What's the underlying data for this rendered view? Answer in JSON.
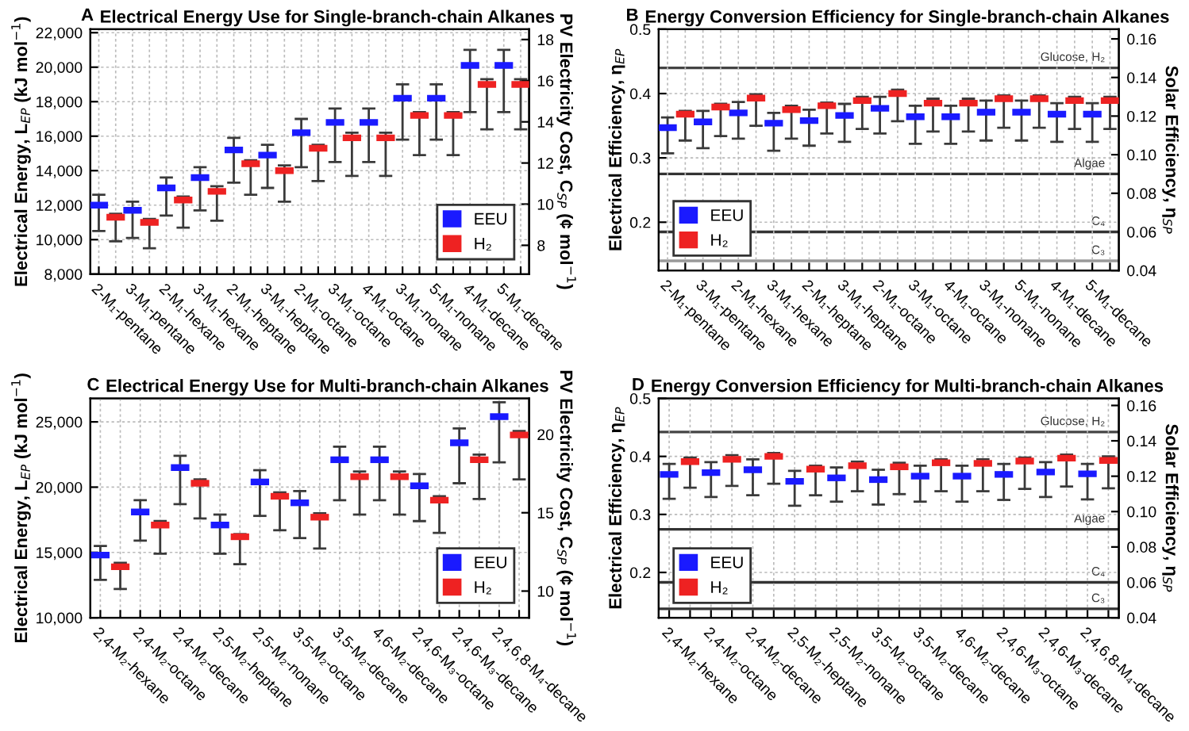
{
  "chart_data": [
    {
      "type": "scatter",
      "title": "Electrical Energy Use for Single-branch-chain Alkanes",
      "annotations": [
        "A"
      ],
      "ylabel": "Electrical Energy, L$_{EP}$ (kJ mol$^{−1}$)",
      "y2label": "PV Electricity Cost, C$_{SP}$ (¢ mol$^{−1}$)",
      "categories": [
        "2-M₁-pentane",
        null,
        "3-M₁-pentane",
        null,
        "2-M₁-hexane",
        null,
        "3-M₁-hexane",
        null,
        "2-M₁-heptane",
        null,
        "3-M₁-heptane",
        null,
        "2-M₁-octane",
        null,
        "3-M₁-octane",
        null,
        "4-M₁-octane",
        null,
        "3-M₁-nonane",
        null,
        "5-M₁-nonane",
        null,
        "4-M₁-decane",
        null,
        "5-M₁-decane",
        null
      ],
      "series": [
        {
          "name": "EEU",
          "color": "#1a1aff",
          "values": [
            12000,
            null,
            11700,
            null,
            13000,
            null,
            13600,
            null,
            15200,
            null,
            14900,
            null,
            16200,
            null,
            16800,
            null,
            16800,
            null,
            18200,
            null,
            18200,
            null,
            20100,
            null,
            20100,
            null
          ],
          "errors": [
            [
              10500,
              12600
            ],
            null,
            [
              10100,
              12200
            ],
            null,
            [
              11400,
              13600
            ],
            null,
            [
              11700,
              14200
            ],
            null,
            [
              13300,
              15900
            ],
            null,
            [
              13000,
              15500
            ],
            null,
            [
              14200,
              17000
            ],
            null,
            [
              14500,
              17600
            ],
            null,
            [
              14500,
              17600
            ],
            null,
            [
              15800,
              19000
            ],
            null,
            [
              15800,
              19000
            ],
            null,
            [
              17400,
              21000
            ],
            null,
            [
              17400,
              21000
            ],
            null
          ]
        },
        {
          "name": "H₂",
          "color": "#ee2222",
          "values": [
            null,
            11300,
            null,
            11000,
            null,
            12300,
            null,
            12800,
            null,
            14400,
            null,
            14000,
            null,
            15300,
            null,
            15900,
            null,
            15900,
            null,
            17200,
            null,
            17200,
            null,
            19000,
            null,
            19000
          ],
          "errors": [
            null,
            [
              9900,
              11500
            ],
            null,
            [
              9500,
              11200
            ],
            null,
            [
              10700,
              12500
            ],
            null,
            [
              11100,
              13100
            ],
            null,
            [
              12600,
              14600
            ],
            null,
            [
              12200,
              14300
            ],
            null,
            [
              13400,
              15500
            ],
            null,
            [
              13700,
              16200
            ],
            null,
            [
              13700,
              16200
            ],
            null,
            [
              14900,
              17400
            ],
            null,
            [
              14900,
              17400
            ],
            null,
            [
              16400,
              19300
            ],
            null,
            [
              16400,
              19300
            ]
          ]
        }
      ],
      "ylim": [
        8000,
        22200
      ],
      "yticks": [
        {
          "value": 8000,
          "label": "8,000"
        },
        {
          "value": 10000,
          "label": "10,000"
        },
        {
          "value": 12000,
          "label": "12,000"
        },
        {
          "value": 14000,
          "label": "14,000"
        },
        {
          "value": 16000,
          "label": "16,000"
        },
        {
          "value": 18000,
          "label": "18,000"
        },
        {
          "value": 20000,
          "label": "20,000"
        },
        {
          "value": 22000,
          "label": "22,000"
        }
      ],
      "y2lim": [
        6.6,
        18.5
      ],
      "y2ticks": [
        8,
        10,
        12,
        14,
        16,
        18
      ],
      "grid": true,
      "legend": "bottom right"
    },
    {
      "type": "scatter",
      "title": "Energy Conversion Efficiency for Single-branch-chain Alkanes",
      "annotations": [
        "B"
      ],
      "ylabel": "Electrical Efficiency, η$_{EP}$",
      "y2label": "Solar Efficiency, η$_{SP}$",
      "categories": [
        "2-M₁-pentane",
        null,
        "3-M₁-pentane",
        null,
        "2-M₁-hexane",
        null,
        "3-M₁-hexane",
        null,
        "2-M₁-heptane",
        null,
        "3-M₁-heptane",
        null,
        "2-M₁-octane",
        null,
        "3-M₁-octane",
        null,
        "4-M₁-octane",
        null,
        "3-M₁-nonane",
        null,
        "5-M₁-nonane",
        null,
        "4-M₁-decane",
        null,
        "5-M₁-decane",
        null
      ],
      "series": [
        {
          "name": "EEU",
          "color": "#1a1aff",
          "values": [
            0.347,
            null,
            0.356,
            null,
            0.37,
            null,
            0.354,
            null,
            0.358,
            null,
            0.366,
            null,
            0.377,
            null,
            0.364,
            null,
            0.364,
            null,
            0.371,
            null,
            0.371,
            null,
            0.368,
            null,
            0.368,
            null
          ],
          "errors": [
            [
              0.307,
              0.363
            ],
            null,
            [
              0.315,
              0.373
            ],
            null,
            [
              0.33,
              0.387
            ],
            null,
            [
              0.311,
              0.37
            ],
            null,
            [
              0.319,
              0.375
            ],
            null,
            [
              0.325,
              0.384
            ],
            null,
            [
              0.338,
              0.395
            ],
            null,
            [
              0.322,
              0.381
            ],
            null,
            [
              0.322,
              0.381
            ],
            null,
            [
              0.327,
              0.389
            ],
            null,
            [
              0.327,
              0.389
            ],
            null,
            [
              0.325,
              0.385
            ],
            null,
            [
              0.325,
              0.385
            ],
            null
          ]
        },
        {
          "name": "H₂",
          "color": "#ee2222",
          "values": [
            null,
            0.368,
            null,
            0.379,
            null,
            0.393,
            null,
            0.375,
            null,
            0.381,
            null,
            0.389,
            null,
            0.4,
            null,
            0.385,
            null,
            0.385,
            null,
            0.392,
            null,
            0.392,
            null,
            0.389,
            null,
            0.389
          ],
          "errors": [
            null,
            [
              0.327,
              0.373
            ],
            null,
            [
              0.334,
              0.384
            ],
            null,
            [
              0.35,
              0.399
            ],
            null,
            [
              0.33,
              0.381
            ],
            null,
            [
              0.338,
              0.386
            ],
            null,
            [
              0.345,
              0.395
            ],
            null,
            [
              0.357,
              0.406
            ],
            null,
            [
              0.341,
              0.392
            ],
            null,
            [
              0.341,
              0.392
            ],
            null,
            [
              0.347,
              0.397
            ],
            null,
            [
              0.347,
              0.397
            ],
            null,
            [
              0.345,
              0.395
            ],
            null,
            [
              0.345,
              0.395
            ]
          ]
        }
      ],
      "ylim": [
        0.125,
        0.5
      ],
      "yticks": [
        0.2,
        0.3,
        0.4,
        0.5
      ],
      "y2lim": [
        0.04,
        0.165
      ],
      "y2ticks": [
        0.04,
        0.06,
        0.08,
        {
          "value": 0.1,
          "label": "0.10"
        },
        0.12,
        0.14,
        0.16
      ],
      "ref_lines": [
        {
          "axis": "y2",
          "value": 0.145,
          "label": "Glucose, H₂",
          "color": "#444444"
        },
        {
          "axis": "y2",
          "value": 0.09,
          "label": "Algae",
          "color": "#333333"
        },
        {
          "axis": "y2",
          "value": 0.06,
          "label": "C₄",
          "color": "#333333"
        },
        {
          "axis": "y2",
          "value": 0.045,
          "label": "C₃",
          "color": "#999999"
        }
      ],
      "grid": true,
      "legend": "bottom left"
    },
    {
      "type": "scatter",
      "title": "Electrical Energy Use for Multi-branch-chain Alkanes",
      "annotations": [
        "C"
      ],
      "ylabel": "Electrical Energy, L$_{EP}$ (kJ mol$^{−1}$)",
      "y2label": "PV Electricity Cost, C$_{SP}$ (¢ mol$^{−1}$)",
      "categories": [
        "2,4-M₂-hexane",
        null,
        "2,4-M₂-octane",
        null,
        "2,4-M₂-decane",
        null,
        "2,5-M₂-heptane",
        null,
        "2,5-M₂-nonane",
        null,
        "3,5-M₂-octane",
        null,
        "3,5-M₂-decane",
        null,
        "4,6-M₂-decane",
        null,
        "2,4,6-M₃-octane",
        null,
        "2,4,6-M₃-decane",
        null,
        "2,4,6,8-M₄-decane",
        null
      ],
      "series": [
        {
          "name": "EEU",
          "color": "#1a1aff",
          "values": [
            14800,
            null,
            18100,
            null,
            21500,
            null,
            17100,
            null,
            20400,
            null,
            18800,
            null,
            22100,
            null,
            22100,
            null,
            20100,
            null,
            23400,
            null,
            25400,
            null
          ],
          "errors": [
            [
              12900,
              15500
            ],
            null,
            [
              15900,
              19000
            ],
            null,
            [
              18700,
              22400
            ],
            null,
            [
              14900,
              17900
            ],
            null,
            [
              17800,
              21300
            ],
            null,
            [
              16100,
              19700
            ],
            null,
            [
              19000,
              23100
            ],
            null,
            [
              19000,
              23100
            ],
            null,
            [
              17400,
              21000
            ],
            null,
            [
              20300,
              24500
            ],
            null,
            [
              21900,
              26500
            ],
            null
          ]
        },
        {
          "name": "H₂",
          "color": "#ee2222",
          "values": [
            null,
            13900,
            null,
            17100,
            null,
            20300,
            null,
            16200,
            null,
            19300,
            null,
            17700,
            null,
            20800,
            null,
            20800,
            null,
            19000,
            null,
            22100,
            null,
            24000
          ],
          "errors": [
            null,
            [
              12200,
              14200
            ],
            null,
            [
              14900,
              17400
            ],
            null,
            [
              17600,
              20600
            ],
            null,
            [
              14100,
              16400
            ],
            null,
            [
              16700,
              19600
            ],
            null,
            [
              15300,
              18000
            ],
            null,
            [
              17900,
              21200
            ],
            null,
            [
              17900,
              21200
            ],
            null,
            [
              16500,
              19300
            ],
            null,
            [
              19100,
              22500
            ],
            null,
            [
              20600,
              24300
            ]
          ]
        }
      ],
      "ylim": [
        10000,
        26800
      ],
      "yticks": [
        {
          "value": 10000,
          "label": "10,000"
        },
        {
          "value": 15000,
          "label": "15,000"
        },
        {
          "value": 20000,
          "label": "20,000"
        },
        {
          "value": 25000,
          "label": "25,000"
        }
      ],
      "y2lim": [
        8.3,
        22.3
      ],
      "y2ticks": [
        10,
        15,
        20
      ],
      "grid": true,
      "legend": "bottom right"
    },
    {
      "type": "scatter",
      "title": "Energy Conversion Efficiency for Multi-branch-chain Alkanes",
      "annotations": [
        "D"
      ],
      "ylabel": "Electrical Efficiency, η$_{EP}$",
      "y2label": "Solar Efficiency, η$_{SP}$",
      "categories": [
        "2,4-M₂-hexane",
        null,
        "2,4-M₂-octane",
        null,
        "2,4-M₂-decane",
        null,
        "2,5-M₂-heptane",
        null,
        "2,5-M₂-nonane",
        null,
        "3,5-M₂-octane",
        null,
        "3,5-M₂-decane",
        null,
        "4,6-M₂-decane",
        null,
        "2,4,6-M₃-octane",
        null,
        "2,4,6-M₃-decane",
        null,
        "2,4,6,8-M₄-decane",
        null
      ],
      "series": [
        {
          "name": "EEU",
          "color": "#1a1aff",
          "values": [
            0.369,
            null,
            0.372,
            null,
            0.377,
            null,
            0.357,
            null,
            0.363,
            null,
            0.36,
            null,
            0.366,
            null,
            0.366,
            null,
            0.369,
            null,
            0.373,
            null,
            0.37,
            null
          ],
          "errors": [
            [
              0.327,
              0.387
            ],
            null,
            [
              0.33,
              0.39
            ],
            null,
            [
              0.333,
              0.395
            ],
            null,
            [
              0.315,
              0.375
            ],
            null,
            [
              0.322,
              0.381
            ],
            null,
            [
              0.317,
              0.377
            ],
            null,
            [
              0.322,
              0.384
            ],
            null,
            [
              0.322,
              0.384
            ],
            null,
            [
              0.325,
              0.387
            ],
            null,
            [
              0.33,
              0.39
            ],
            null,
            [
              0.326,
              0.387
            ],
            null
          ]
        },
        {
          "name": "H₂",
          "color": "#ee2222",
          "values": [
            null,
            0.391,
            null,
            0.395,
            null,
            0.4,
            null,
            0.378,
            null,
            0.384,
            null,
            0.382,
            null,
            0.389,
            null,
            0.388,
            null,
            0.392,
            null,
            0.397,
            null,
            0.393
          ],
          "errors": [
            null,
            [
              0.346,
              0.398
            ],
            null,
            [
              0.349,
              0.402
            ],
            null,
            [
              0.353,
              0.406
            ],
            null,
            [
              0.333,
              0.384
            ],
            null,
            [
              0.34,
              0.391
            ],
            null,
            [
              0.335,
              0.389
            ],
            null,
            [
              0.34,
              0.395
            ],
            null,
            [
              0.34,
              0.395
            ],
            null,
            [
              0.344,
              0.398
            ],
            null,
            [
              0.348,
              0.403
            ],
            null,
            [
              0.345,
              0.4
            ]
          ]
        }
      ],
      "ylim": [
        0.122,
        0.5
      ],
      "yticks": [
        0.2,
        0.3,
        0.4,
        0.5
      ],
      "y2lim": [
        0.04,
        0.164
      ],
      "y2ticks": [
        0.04,
        0.06,
        0.08,
        {
          "value": 0.1,
          "label": "0.10"
        },
        0.12,
        0.14,
        0.16
      ],
      "ref_lines": [
        {
          "axis": "y2",
          "value": 0.145,
          "label": "Glucose, H₂",
          "color": "#444444"
        },
        {
          "axis": "y2",
          "value": 0.09,
          "label": "Algae",
          "color": "#333333"
        },
        {
          "axis": "y2",
          "value": 0.06,
          "label": "C₄",
          "color": "#333333"
        },
        {
          "axis": "y2",
          "value": 0.045,
          "label": "C₃",
          "color": "#333333"
        }
      ],
      "grid": true,
      "legend": "bottom left"
    }
  ]
}
